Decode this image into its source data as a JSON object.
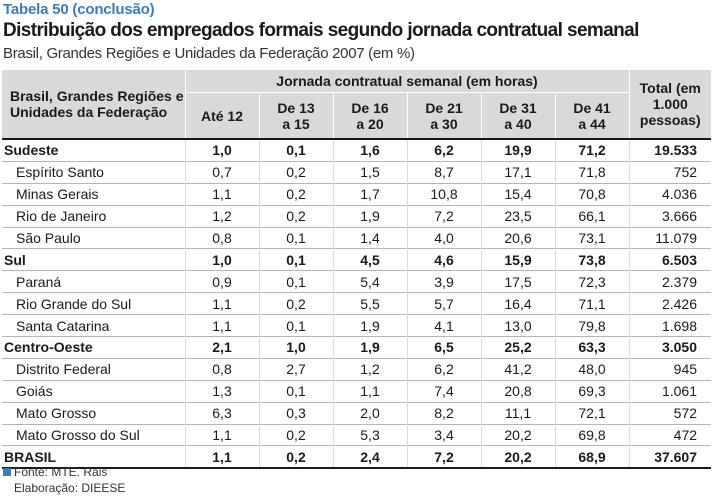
{
  "header": {
    "label": "Tabela 50 (conclusão)",
    "title": "Distribuição dos empregados formais segundo jornada contratual semanal",
    "subtitle": "Brasil, Grandes Regiões e Unidades da Federação 2007 (em %)"
  },
  "table": {
    "stub_line1": "Brasil, Grandes Regiões e",
    "stub_line2": "Unidades da Federação",
    "group_header": "Jornada contratual semanal (em horas)",
    "columns": [
      {
        "line1": "Até 12",
        "line2": ""
      },
      {
        "line1": "De 13",
        "line2": "a 15"
      },
      {
        "line1": "De 16",
        "line2": "a 20"
      },
      {
        "line1": "De 21",
        "line2": "a 30"
      },
      {
        "line1": "De 31",
        "line2": "a 40"
      },
      {
        "line1": "De 41",
        "line2": "a 44"
      }
    ],
    "total_line1": "Total (em",
    "total_line2": "1.000",
    "total_line3": "pessoas)",
    "rows": [
      {
        "name": "Sudeste",
        "bold": true,
        "v": [
          "1,0",
          "0,1",
          "1,6",
          "6,2",
          "19,9",
          "71,2"
        ],
        "total": "19.533"
      },
      {
        "name": "Espírito Santo",
        "bold": false,
        "v": [
          "0,7",
          "0,2",
          "1,5",
          "8,7",
          "17,1",
          "71,8"
        ],
        "total": "752"
      },
      {
        "name": "Minas Gerais",
        "bold": false,
        "v": [
          "1,1",
          "0,2",
          "1,7",
          "10,8",
          "15,4",
          "70,8"
        ],
        "total": "4.036"
      },
      {
        "name": "Rio de Janeiro",
        "bold": false,
        "v": [
          "1,2",
          "0,2",
          "1,9",
          "7,2",
          "23,5",
          "66,1"
        ],
        "total": "3.666"
      },
      {
        "name": "São Paulo",
        "bold": false,
        "v": [
          "0,8",
          "0,1",
          "1,4",
          "4,0",
          "20,6",
          "73,1"
        ],
        "total": "11.079"
      },
      {
        "name": "Sul",
        "bold": true,
        "v": [
          "1,0",
          "0,1",
          "4,5",
          "4,6",
          "15,9",
          "73,8"
        ],
        "total": "6.503"
      },
      {
        "name": "Paraná",
        "bold": false,
        "v": [
          "0,9",
          "0,1",
          "5,4",
          "3,9",
          "17,5",
          "72,3"
        ],
        "total": "2.379"
      },
      {
        "name": "Rio Grande do Sul",
        "bold": false,
        "v": [
          "1,1",
          "0,2",
          "5,5",
          "5,7",
          "16,4",
          "71,1"
        ],
        "total": "2.426"
      },
      {
        "name": "Santa Catarina",
        "bold": false,
        "v": [
          "1,1",
          "0,1",
          "1,9",
          "4,1",
          "13,0",
          "79,8"
        ],
        "total": "1.698"
      },
      {
        "name": "Centro-Oeste",
        "bold": true,
        "v": [
          "2,1",
          "1,0",
          "1,9",
          "6,5",
          "25,2",
          "63,3"
        ],
        "total": "3.050"
      },
      {
        "name": "Distrito Federal",
        "bold": false,
        "v": [
          "0,8",
          "2,7",
          "1,2",
          "6,2",
          "41,2",
          "48,0"
        ],
        "total": "945"
      },
      {
        "name": "Goiás",
        "bold": false,
        "v": [
          "1,3",
          "0,1",
          "1,1",
          "7,4",
          "20,8",
          "69,3"
        ],
        "total": "1.061"
      },
      {
        "name": "Mato Grosso",
        "bold": false,
        "v": [
          "6,3",
          "0,3",
          "2,0",
          "8,2",
          "11,1",
          "72,1"
        ],
        "total": "572"
      },
      {
        "name": "Mato Grosso do Sul",
        "bold": false,
        "v": [
          "1,1",
          "0,2",
          "5,3",
          "3,4",
          "20,2",
          "69,8"
        ],
        "total": "472"
      },
      {
        "name": "BRASIL",
        "bold": true,
        "v": [
          "1,1",
          "0,2",
          "2,4",
          "7,2",
          "20,2",
          "68,9"
        ],
        "total": "37.607"
      }
    ]
  },
  "footer": {
    "source": "Fonte: MTE. Rais",
    "elaboration": "Elaboração: DIEESE",
    "accent_color": "#3a7db8"
  }
}
